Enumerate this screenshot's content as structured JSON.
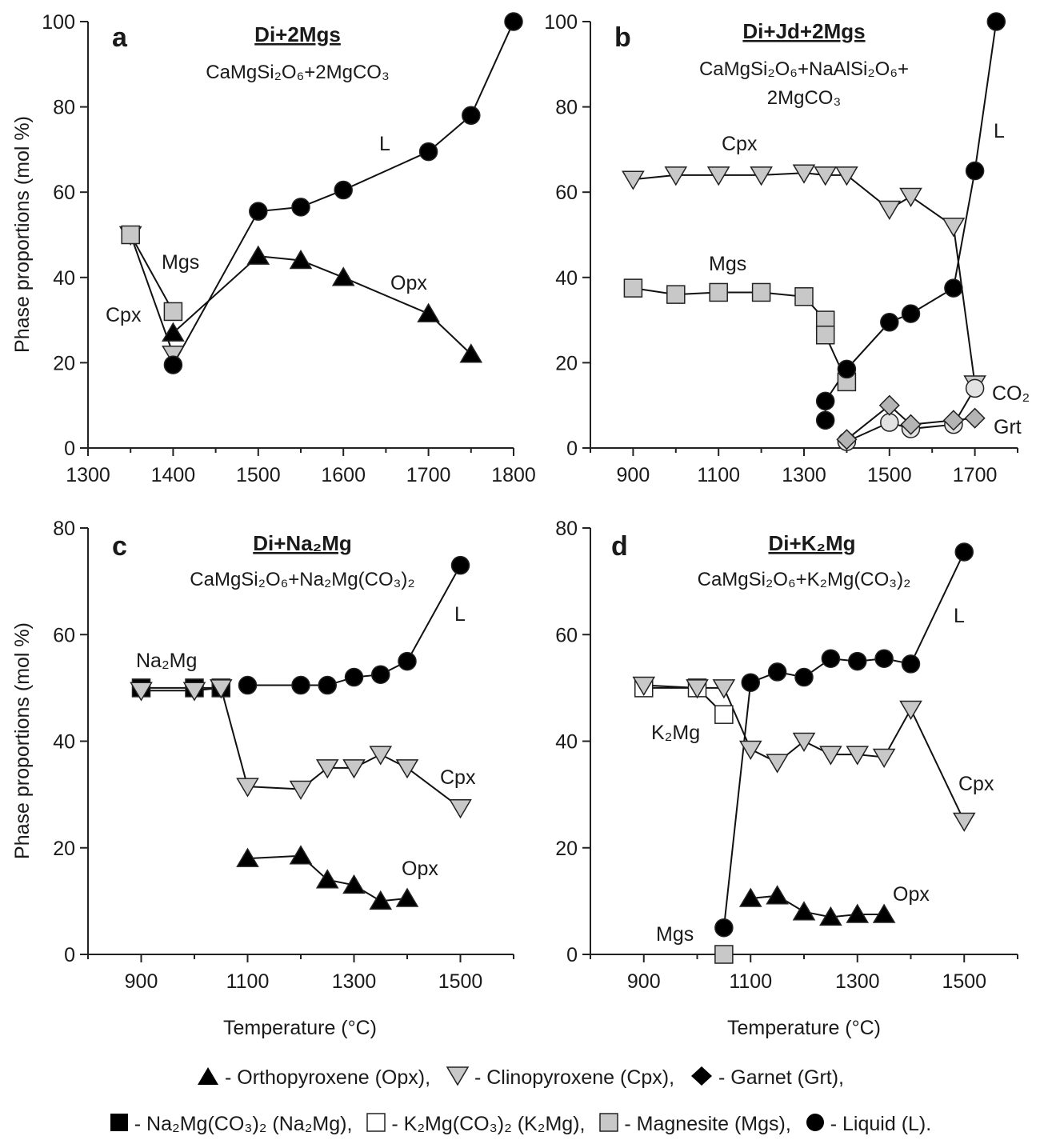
{
  "chart_data": [
    {
      "type": "line",
      "panel": "a",
      "title": "Di+2Mgs",
      "subtitle": "CaMgSi₂O₆+2MgCO₃",
      "ylabel": "Phase proportions (mol %)",
      "xlabel": "",
      "xlim": [
        1300,
        1800
      ],
      "xticks": [
        1300,
        1400,
        1500,
        1600,
        1700,
        1800
      ],
      "ylim": [
        0,
        100
      ],
      "yticks": [
        0,
        20,
        40,
        60,
        80,
        100
      ],
      "series": [
        {
          "name": "Opx",
          "marker": "tri-up",
          "fill": "#000000",
          "points": [
            [
              1400,
              27
            ],
            [
              1500,
              45
            ],
            [
              1550,
              44
            ],
            [
              1600,
              40
            ],
            [
              1700,
              31.5
            ],
            [
              1750,
              22
            ]
          ]
        },
        {
          "name": "Cpx",
          "marker": "tri-down",
          "fill": "#c8c8c8",
          "points": [
            [
              1350,
              50
            ],
            [
              1400,
              22
            ]
          ]
        },
        {
          "name": "Mgs",
          "marker": "square",
          "fill": "#c8c8c8",
          "points": [
            [
              1350,
              50
            ],
            [
              1400,
              32
            ]
          ]
        },
        {
          "name": "L",
          "marker": "circle",
          "fill": "#000000",
          "points": [
            [
              1400,
              19.5
            ],
            [
              1500,
              55.5
            ],
            [
              1550,
              56.5
            ],
            [
              1600,
              60.5
            ],
            [
              1700,
              69.5
            ],
            [
              1750,
              78
            ],
            [
              1800,
              100
            ]
          ]
        }
      ],
      "annotations": [
        "Mgs",
        "Cpx",
        "L",
        "Opx"
      ]
    },
    {
      "type": "line",
      "panel": "b",
      "title": "Di+Jd+2Mgs",
      "subtitle": "CaMgSi₂O₆+NaAlSi₂O₆+",
      "subtitle2": "2MgCO₃",
      "xlabel": "",
      "xlim": [
        800,
        1800
      ],
      "xticks": [
        900,
        1100,
        1300,
        1500,
        1700
      ],
      "ylim": [
        0,
        100
      ],
      "yticks": [
        0,
        20,
        40,
        60,
        80,
        100
      ],
      "series": [
        {
          "name": "Cpx",
          "marker": "tri-down",
          "fill": "#c8c8c8",
          "points": [
            [
              900,
              63
            ],
            [
              1000,
              64
            ],
            [
              1100,
              64
            ],
            [
              1200,
              64
            ],
            [
              1300,
              64.5
            ],
            [
              1350,
              64
            ],
            [
              1400,
              64
            ],
            [
              1500,
              56
            ],
            [
              1550,
              59
            ],
            [
              1650,
              52
            ],
            [
              1700,
              15
            ]
          ]
        },
        {
          "name": "Mgs",
          "marker": "square",
          "fill": "#c8c8c8",
          "points": [
            [
              900,
              37.5
            ],
            [
              1000,
              36
            ],
            [
              1100,
              36.5
            ],
            [
              1200,
              36.5
            ],
            [
              1300,
              35.5
            ],
            [
              1350,
              30
            ],
            [
              1350,
              26.5
            ],
            [
              1400,
              15.5
            ]
          ]
        },
        {
          "name": "L",
          "marker": "circle",
          "fill": "#000000",
          "points": [
            [
              1350,
              6.5
            ],
            [
              1350,
              11
            ],
            [
              1400,
              18.5
            ],
            [
              1500,
              29.5
            ],
            [
              1550,
              31.5
            ],
            [
              1650,
              37.5
            ],
            [
              1700,
              65
            ],
            [
              1750,
              100
            ]
          ]
        },
        {
          "name": "CO₂",
          "marker": "circle",
          "fill": "#e2e2e2",
          "points": [
            [
              1400,
              1.5
            ],
            [
              1500,
              6
            ],
            [
              1550,
              4.5
            ],
            [
              1650,
              5.5
            ],
            [
              1700,
              14
            ]
          ]
        },
        {
          "name": "Grt",
          "marker": "diamond",
          "fill": "#b4b4b4",
          "points": [
            [
              1400,
              2
            ],
            [
              1500,
              10
            ],
            [
              1550,
              5.5
            ],
            [
              1650,
              6.5
            ],
            [
              1700,
              7
            ]
          ]
        }
      ],
      "annotations": [
        "Cpx",
        "Mgs",
        "L",
        "CO₂",
        "Grt"
      ]
    },
    {
      "type": "line",
      "panel": "c",
      "title": "Di+Na₂Mg",
      "subtitle": "CaMgSi₂O₆+Na₂Mg(CO₃)₂",
      "ylabel": "Phase proportions (mol %)",
      "xlabel": "Temperature (°C)",
      "xlim": [
        800,
        1600
      ],
      "xticks": [
        900,
        1100,
        1300,
        1500
      ],
      "ylim": [
        0,
        80
      ],
      "yticks": [
        0,
        20,
        40,
        60,
        80
      ],
      "series": [
        {
          "name": "Na₂Mg",
          "marker": "square",
          "fill": "#000000",
          "points": [
            [
              900,
              50
            ],
            [
              1000,
              50
            ],
            [
              1050,
              50
            ]
          ]
        },
        {
          "name": "Cpx",
          "marker": "tri-down",
          "fill": "#c8c8c8",
          "points": [
            [
              900,
              49.5
            ],
            [
              1000,
              49.5
            ],
            [
              1050,
              50
            ],
            [
              1100,
              31.5
            ],
            [
              1200,
              31
            ],
            [
              1250,
              35
            ],
            [
              1300,
              35
            ],
            [
              1350,
              37.5
            ],
            [
              1400,
              35
            ],
            [
              1500,
              27.5
            ]
          ]
        },
        {
          "name": "L",
          "marker": "circle",
          "fill": "#000000",
          "points": [
            [
              1100,
              50.5
            ],
            [
              1200,
              50.5
            ],
            [
              1250,
              50.5
            ],
            [
              1300,
              52
            ],
            [
              1350,
              52.5
            ],
            [
              1400,
              55
            ],
            [
              1500,
              73
            ]
          ]
        },
        {
          "name": "Opx",
          "marker": "tri-up",
          "fill": "#000000",
          "points": [
            [
              1100,
              18
            ],
            [
              1200,
              18.5
            ],
            [
              1250,
              14
            ],
            [
              1300,
              13
            ],
            [
              1350,
              10
            ],
            [
              1400,
              10.5
            ]
          ]
        }
      ],
      "annotations": [
        "Na₂Mg",
        "L",
        "Cpx",
        "Opx"
      ]
    },
    {
      "type": "line",
      "panel": "d",
      "title": "Di+K₂Mg",
      "subtitle": "CaMgSi₂O₆+K₂Mg(CO₃)₂",
      "xlabel": "Temperature (°C)",
      "xlim": [
        800,
        1600
      ],
      "xticks": [
        900,
        1100,
        1300,
        1500
      ],
      "ylim": [
        0,
        80
      ],
      "yticks": [
        0,
        20,
        40,
        60,
        80
      ],
      "series": [
        {
          "name": "K₂Mg",
          "marker": "square",
          "fill": "#ffffff",
          "points": [
            [
              900,
              50
            ],
            [
              1000,
              50
            ],
            [
              1050,
              45
            ]
          ]
        },
        {
          "name": "Cpx",
          "marker": "tri-down",
          "fill": "#c8c8c8",
          "points": [
            [
              900,
              50.5
            ],
            [
              1000,
              50
            ],
            [
              1050,
              50
            ],
            [
              1100,
              38.5
            ],
            [
              1150,
              36
            ],
            [
              1200,
              40
            ],
            [
              1250,
              37.5
            ],
            [
              1300,
              37.5
            ],
            [
              1350,
              37
            ],
            [
              1400,
              46
            ],
            [
              1500,
              25
            ]
          ]
        },
        {
          "name": "L",
          "marker": "circle",
          "fill": "#000000",
          "points": [
            [
              1050,
              5
            ],
            [
              1100,
              51
            ],
            [
              1150,
              53
            ],
            [
              1200,
              52
            ],
            [
              1250,
              55.5
            ],
            [
              1300,
              55
            ],
            [
              1350,
              55.5
            ],
            [
              1400,
              54.5
            ],
            [
              1500,
              75.5
            ]
          ]
        },
        {
          "name": "Mgs",
          "marker": "square",
          "fill": "#c8c8c8",
          "points": [
            [
              1050,
              0
            ]
          ]
        },
        {
          "name": "Opx",
          "marker": "tri-up",
          "fill": "#000000",
          "points": [
            [
              1100,
              10.5
            ],
            [
              1150,
              11
            ],
            [
              1200,
              8
            ],
            [
              1250,
              7
            ],
            [
              1300,
              7.5
            ],
            [
              1350,
              7.5
            ]
          ]
        }
      ],
      "annotations": [
        "K₂Mg",
        "L",
        "Cpx",
        "Opx",
        "Mgs"
      ]
    }
  ],
  "legend": {
    "row1": [
      {
        "marker": "tri-up",
        "fill": "#000000",
        "label": "- Orthopyroxene (Opx),"
      },
      {
        "marker": "tri-down",
        "fill": "#c8c8c8",
        "label": "- Clinopyroxene (Cpx),"
      },
      {
        "marker": "diamond",
        "fill": "#000000",
        "label": "- Garnet (Grt),"
      }
    ],
    "row2": [
      {
        "marker": "square",
        "fill": "#000000",
        "label": "- Na₂Mg(CO₃)₂ (Na₂Mg),"
      },
      {
        "marker": "square",
        "fill": "#ffffff",
        "label": "- K₂Mg(CO₃)₂ (K₂Mg),"
      },
      {
        "marker": "square",
        "fill": "#c8c8c8",
        "label": "- Magnesite (Mgs),"
      },
      {
        "marker": "circle",
        "fill": "#000000",
        "label": "- Liquid (L)."
      }
    ]
  }
}
